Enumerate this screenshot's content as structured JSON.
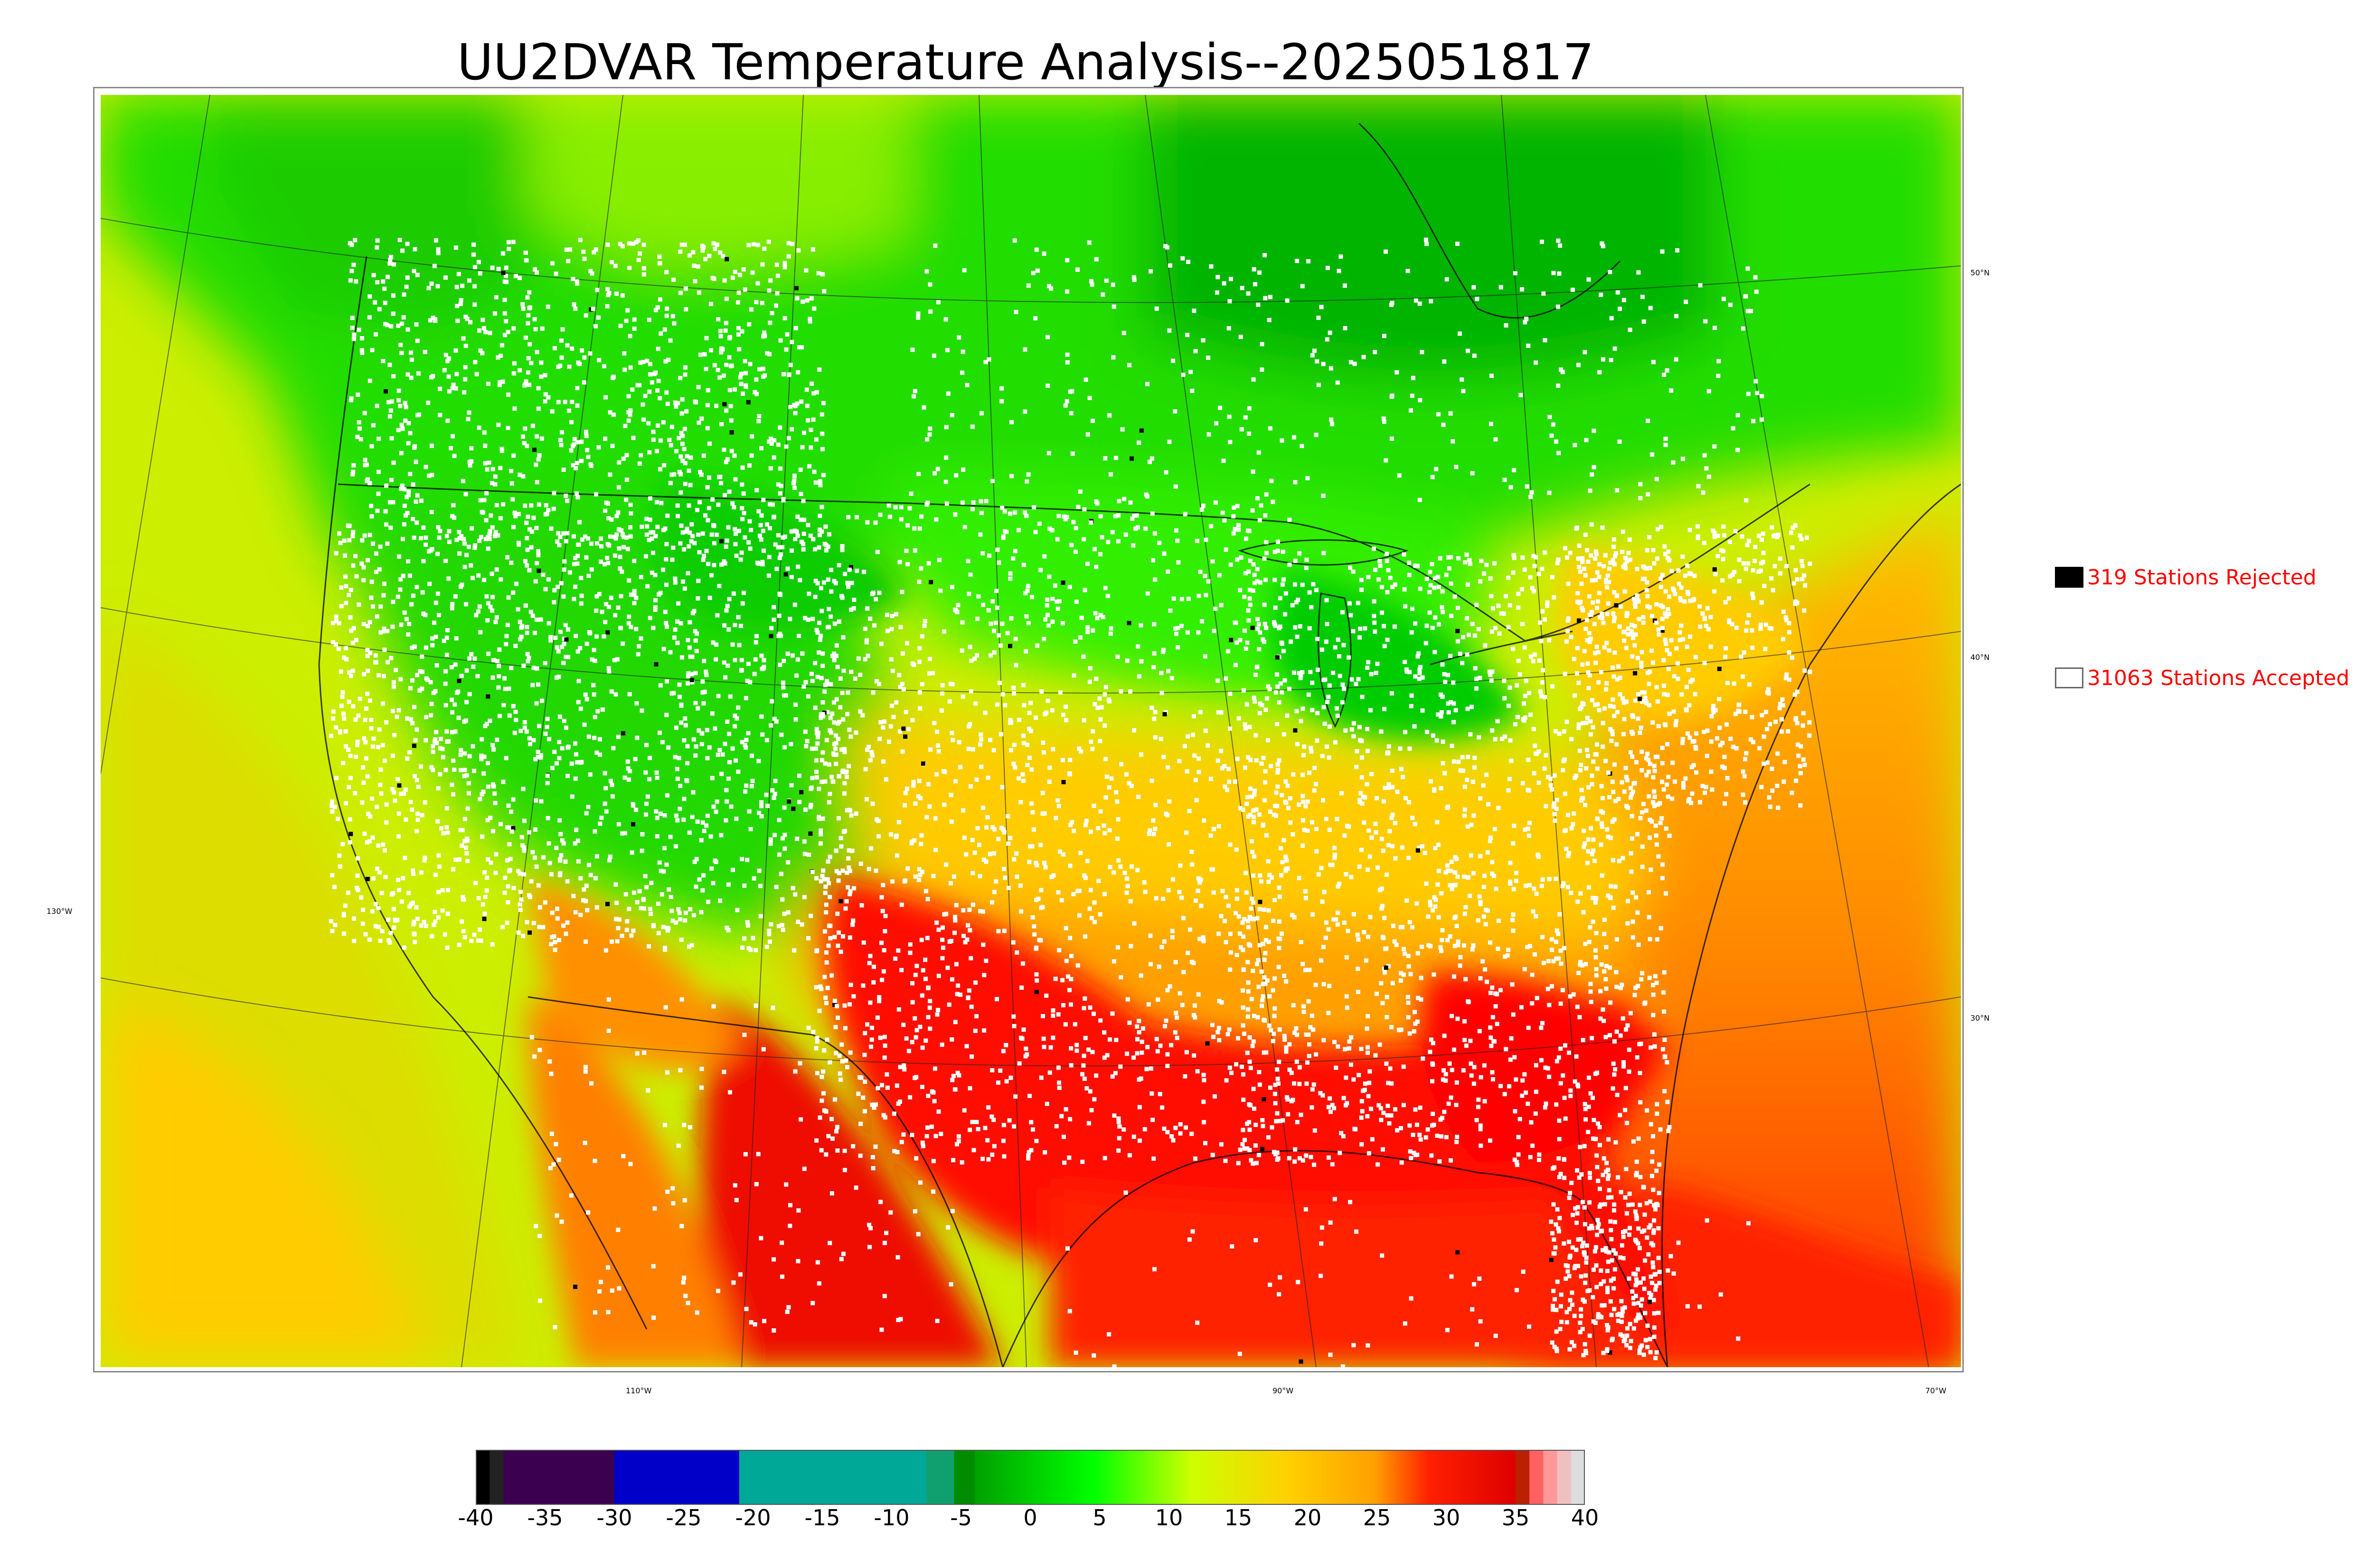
{
  "title": "UU2DVAR Temperature Analysis--2025051817",
  "graticule_labels": {
    "lat_50": "50°N",
    "lat_40": "40°N",
    "lat_30": "30°N",
    "lon_130": "130°W",
    "lon_110": "110°W",
    "lon_90": "90°W",
    "lon_70": "70°W"
  },
  "legend": {
    "rejected_label": "319 Stations Rejected",
    "accepted_label": "31063 Stations Accepted",
    "rejected_color": "#000000",
    "accepted_color": "#ffffff"
  },
  "colorbar": {
    "min": -40,
    "max": 40,
    "tick_labels": [
      "-40",
      "-35",
      "-30",
      "-25",
      "-20",
      "-15",
      "-10",
      "-5",
      "0",
      "5",
      "10",
      "15",
      "20",
      "25",
      "30",
      "35",
      "40"
    ],
    "colors": {
      "black": "#000000",
      "purple": "#3c0050",
      "blue": "#0000c8",
      "teal": "#00a898",
      "dark_green": "#00a000",
      "green": "#00ff00",
      "yellow_green": "#ccff00",
      "yellow": "#ffd000",
      "orange": "#ffa000",
      "red": "#ff0000",
      "dark_red": "#cc0000",
      "pink": "#ff9999",
      "light_gray": "#dddddd"
    }
  }
}
